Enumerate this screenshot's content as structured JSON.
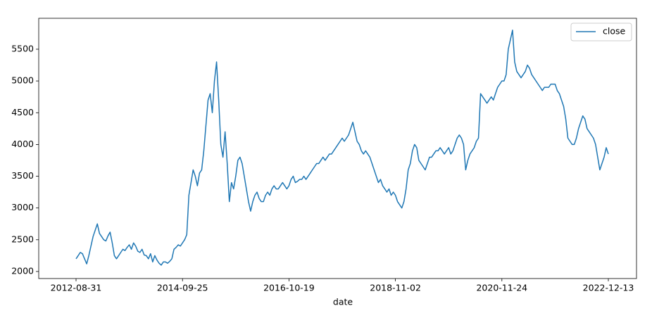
{
  "chart_data": {
    "type": "line",
    "x_label": "date",
    "categories": [
      "2012-08-31",
      null,
      null,
      null,
      null,
      null,
      null,
      null,
      null,
      null,
      null,
      null,
      null,
      null,
      null,
      null,
      null,
      null,
      null,
      null,
      null,
      null,
      null,
      null,
      null,
      null,
      null,
      null,
      null,
      null,
      null,
      null,
      null,
      null,
      null,
      null,
      null,
      null,
      null,
      null,
      null,
      null,
      null,
      null,
      null,
      null,
      null,
      null,
      null,
      null,
      "2014-09-25",
      null,
      null,
      null,
      null,
      null,
      null,
      null,
      null,
      null,
      null,
      null,
      null,
      null,
      null,
      null,
      null,
      null,
      null,
      null,
      null,
      null,
      null,
      null,
      null,
      null,
      null,
      null,
      null,
      null,
      null,
      null,
      null,
      null,
      null,
      null,
      null,
      null,
      null,
      null,
      null,
      null,
      null,
      null,
      null,
      null,
      null,
      null,
      null,
      null,
      "2016-10-19",
      null,
      null,
      null,
      null,
      null,
      null,
      null,
      null,
      null,
      null,
      null,
      null,
      null,
      null,
      null,
      null,
      null,
      null,
      null,
      null,
      null,
      null,
      null,
      null,
      null,
      null,
      null,
      null,
      null,
      null,
      null,
      null,
      null,
      null,
      null,
      null,
      null,
      null,
      null,
      null,
      null,
      null,
      null,
      null,
      null,
      null,
      null,
      null,
      null,
      "2018-11-02",
      null,
      null,
      null,
      null,
      null,
      null,
      null,
      null,
      null,
      null,
      null,
      null,
      null,
      null,
      null,
      null,
      null,
      null,
      null,
      null,
      null,
      null,
      null,
      null,
      null,
      null,
      null,
      null,
      null,
      null,
      null,
      null,
      null,
      null,
      null,
      null,
      null,
      null,
      null,
      null,
      null,
      null,
      null,
      null,
      null,
      null,
      null,
      null,
      null,
      "2020-11-24",
      null,
      null,
      null,
      null,
      null,
      null,
      null,
      null,
      null,
      null,
      null,
      null,
      null,
      null,
      null,
      null,
      null,
      null,
      null,
      null,
      null,
      null,
      null,
      null,
      null,
      null,
      null,
      null,
      null,
      null,
      null,
      null,
      null,
      null,
      null,
      null,
      null,
      null,
      null,
      null,
      null,
      null,
      null,
      null,
      null,
      null,
      null,
      null,
      null,
      "2022-12-13"
    ],
    "series": [
      {
        "name": "close",
        "color": "#1f77b4",
        "values": [
          2200,
          2250,
          2300,
          2280,
          2200,
          2120,
          2250,
          2400,
          2550,
          2650,
          2750,
          2600,
          2550,
          2500,
          2480,
          2560,
          2620,
          2450,
          2250,
          2200,
          2250,
          2300,
          2350,
          2330,
          2380,
          2420,
          2350,
          2450,
          2400,
          2320,
          2300,
          2350,
          2260,
          2250,
          2200,
          2280,
          2150,
          2250,
          2180,
          2130,
          2100,
          2150,
          2150,
          2130,
          2160,
          2200,
          2350,
          2380,
          2420,
          2400,
          2450,
          2500,
          2580,
          3200,
          3400,
          3600,
          3500,
          3350,
          3550,
          3600,
          3900,
          4300,
          4700,
          4800,
          4500,
          5000,
          5300,
          4700,
          4000,
          3800,
          4200,
          3700,
          3100,
          3400,
          3300,
          3500,
          3750,
          3800,
          3700,
          3500,
          3300,
          3100,
          2950,
          3100,
          3200,
          3250,
          3150,
          3100,
          3100,
          3200,
          3250,
          3200,
          3300,
          3350,
          3300,
          3300,
          3350,
          3400,
          3350,
          3300,
          3350,
          3450,
          3500,
          3400,
          3420,
          3450,
          3450,
          3500,
          3450,
          3500,
          3550,
          3600,
          3650,
          3700,
          3700,
          3750,
          3800,
          3750,
          3800,
          3850,
          3850,
          3900,
          3950,
          4000,
          4050,
          4100,
          4050,
          4100,
          4150,
          4250,
          4350,
          4200,
          4050,
          4000,
          3900,
          3850,
          3900,
          3850,
          3800,
          3700,
          3600,
          3500,
          3400,
          3450,
          3350,
          3300,
          3250,
          3300,
          3200,
          3250,
          3200,
          3100,
          3050,
          3000,
          3100,
          3300,
          3600,
          3700,
          3900,
          4000,
          3950,
          3750,
          3700,
          3650,
          3600,
          3700,
          3800,
          3800,
          3850,
          3900,
          3900,
          3950,
          3900,
          3850,
          3900,
          3950,
          3850,
          3900,
          4000,
          4100,
          4150,
          4100,
          4000,
          3600,
          3750,
          3850,
          3900,
          3950,
          4050,
          4100,
          4800,
          4750,
          4700,
          4650,
          4700,
          4750,
          4700,
          4800,
          4900,
          4950,
          5000,
          5000,
          5100,
          5500,
          5650,
          5800,
          5300,
          5150,
          5100,
          5050,
          5100,
          5150,
          5250,
          5200,
          5100,
          5050,
          5000,
          4950,
          4900,
          4850,
          4900,
          4900,
          4900,
          4950,
          4950,
          4950,
          4850,
          4800,
          4700,
          4600,
          4400,
          4100,
          4050,
          4000,
          4000,
          4100,
          4250,
          4350,
          4450,
          4400,
          4250,
          4200,
          4150,
          4100,
          4000,
          3800,
          3600,
          3700,
          3800,
          3950,
          3850
        ]
      }
    ],
    "ylim": [
      1889,
      5987
    ],
    "yticks": [
      2000,
      2500,
      3000,
      3500,
      4000,
      4500,
      5000,
      5500
    ],
    "grid": false,
    "legend": "upper right"
  }
}
